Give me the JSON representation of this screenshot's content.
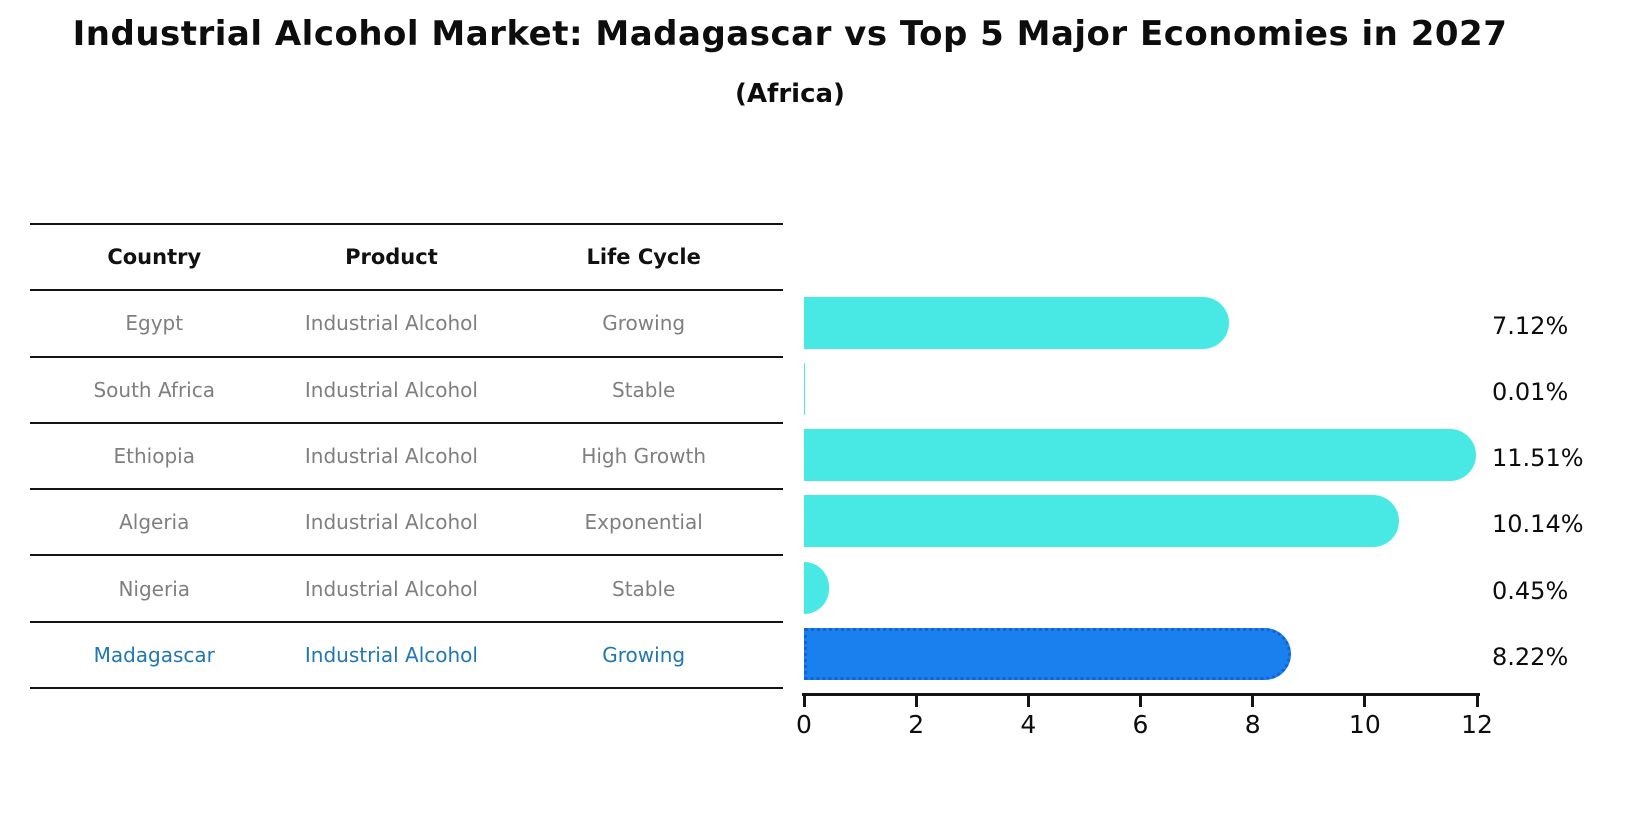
{
  "header": {
    "title": "Industrial Alcohol Market: Madagascar vs Top 5 Major Economies in 2027",
    "subtitle": "(Africa)"
  },
  "table": {
    "columns": [
      "Country",
      "Product",
      "Life Cycle"
    ],
    "rows": [
      {
        "country": "Egypt",
        "product": "Industrial Alcohol",
        "life_cycle": "Growing",
        "highlight": false
      },
      {
        "country": "South Africa",
        "product": "Industrial Alcohol",
        "life_cycle": "Stable",
        "highlight": false
      },
      {
        "country": "Ethiopia",
        "product": "Industrial Alcohol",
        "life_cycle": "High Growth",
        "highlight": false
      },
      {
        "country": "Algeria",
        "product": "Industrial Alcohol",
        "life_cycle": "Exponential",
        "highlight": false
      },
      {
        "country": "Nigeria",
        "product": "Industrial Alcohol",
        "life_cycle": "Stable",
        "highlight": false
      },
      {
        "country": "Madagascar",
        "product": "Industrial Alcohol",
        "life_cycle": "Growing",
        "highlight": true
      }
    ]
  },
  "chart_data": {
    "type": "bar",
    "orientation": "horizontal",
    "title": "Industrial Alcohol Market: Madagascar vs Top 5 Major Economies in 2027 (Africa)",
    "categories": [
      "Egypt",
      "South Africa",
      "Ethiopia",
      "Algeria",
      "Nigeria",
      "Madagascar"
    ],
    "values": [
      7.12,
      0.01,
      11.51,
      10.14,
      0.45,
      8.22
    ],
    "value_labels": [
      "7.12%",
      "0.01%",
      "11.51%",
      "10.14%",
      "0.45%",
      "8.22%"
    ],
    "xlabel": "",
    "ylabel": "",
    "xlim": [
      0,
      12
    ],
    "x_ticks": [
      0,
      2,
      4,
      6,
      8,
      10,
      12
    ],
    "grid": false,
    "legend": false,
    "highlight_category": "Madagascar",
    "colors": {
      "bar_default": "#48e9e4",
      "bar_highlight": "#1a80ee",
      "bar_highlight_edge": "#1263d6",
      "highlight_text": "#1f77b4",
      "table_text": "#7f7f7f",
      "text": "#0d0d0d"
    }
  }
}
